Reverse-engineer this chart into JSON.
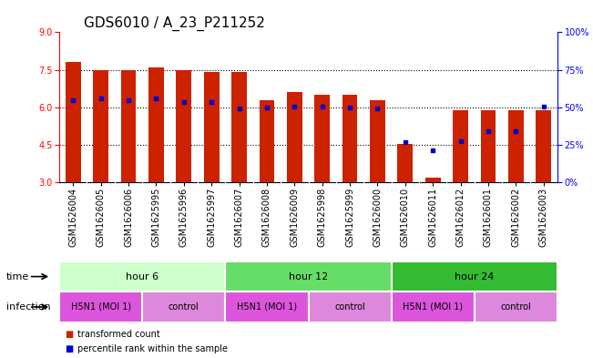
{
  "title": "GDS6010 / A_23_P211252",
  "samples": [
    "GSM1626004",
    "GSM1626005",
    "GSM1626006",
    "GSM1625995",
    "GSM1625996",
    "GSM1625997",
    "GSM1626007",
    "GSM1626008",
    "GSM1626009",
    "GSM1625998",
    "GSM1625999",
    "GSM1626000",
    "GSM1626010",
    "GSM1626011",
    "GSM1626012",
    "GSM1626001",
    "GSM1626002",
    "GSM1626003"
  ],
  "bar_values": [
    7.8,
    7.5,
    7.5,
    7.6,
    7.5,
    7.4,
    7.4,
    6.3,
    6.6,
    6.5,
    6.5,
    6.3,
    4.55,
    3.2,
    5.9,
    5.9,
    5.9,
    5.9
  ],
  "blue_dots": [
    6.3,
    6.35,
    6.3,
    6.35,
    6.2,
    6.2,
    5.95,
    6.0,
    6.05,
    6.05,
    6.0,
    5.95,
    4.6,
    4.3,
    4.65,
    5.05,
    5.05,
    6.05
  ],
  "bar_bottom": 3.0,
  "ylim_left": [
    3,
    9
  ],
  "ylim_right": [
    0,
    100
  ],
  "yticks_left": [
    3,
    4.5,
    6,
    7.5,
    9
  ],
  "yticks_right": [
    0,
    25,
    50,
    75,
    100
  ],
  "yticklabels_right": [
    "0%",
    "25%",
    "50%",
    "75%",
    "100%"
  ],
  "bar_color": "#cc2200",
  "dot_color": "#0000cc",
  "bar_width": 0.55,
  "time_groups": [
    {
      "label": "hour 6",
      "start": 0,
      "end": 6,
      "color": "#ccffcc"
    },
    {
      "label": "hour 12",
      "start": 6,
      "end": 12,
      "color": "#66dd66"
    },
    {
      "label": "hour 24",
      "start": 12,
      "end": 18,
      "color": "#33bb33"
    }
  ],
  "infection_groups": [
    {
      "label": "H5N1 (MOI 1)",
      "start": 0,
      "end": 3,
      "color": "#dd55dd"
    },
    {
      "label": "control",
      "start": 3,
      "end": 6,
      "color": "#dd88dd"
    },
    {
      "label": "H5N1 (MOI 1)",
      "start": 6,
      "end": 9,
      "color": "#dd55dd"
    },
    {
      "label": "control",
      "start": 9,
      "end": 12,
      "color": "#dd88dd"
    },
    {
      "label": "H5N1 (MOI 1)",
      "start": 12,
      "end": 15,
      "color": "#dd55dd"
    },
    {
      "label": "control",
      "start": 15,
      "end": 18,
      "color": "#dd88dd"
    }
  ],
  "time_label": "time",
  "infection_label": "infection",
  "legend_items": [
    {
      "label": "transformed count",
      "color": "#cc2200"
    },
    {
      "label": "percentile rank within the sample",
      "color": "#0000cc"
    }
  ],
  "dotted_lines": [
    4.5,
    6.0,
    7.5
  ],
  "title_fontsize": 11,
  "tick_fontsize": 7,
  "annot_fontsize": 8
}
